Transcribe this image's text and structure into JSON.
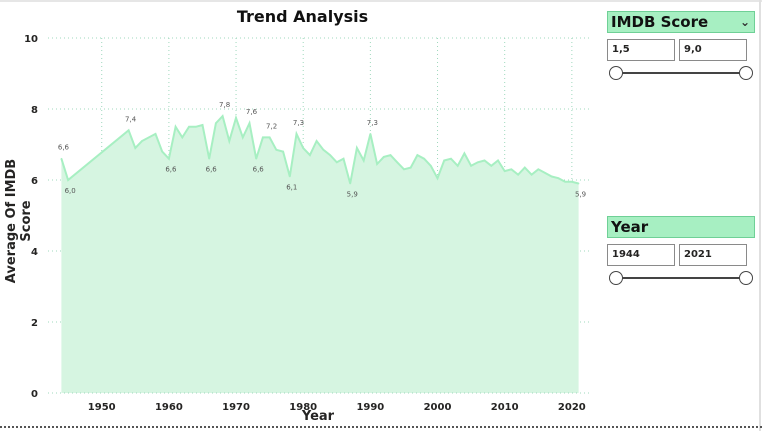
{
  "slicers": {
    "imdb": {
      "title": "IMDB Score",
      "min_value": "1,5",
      "max_value": "9,0",
      "dropdown_icon": "chevron-down-icon"
    },
    "year": {
      "title": "Year",
      "min_value": "1944",
      "max_value": "2021"
    }
  },
  "colors": {
    "area_fill": "#d6f5e1",
    "line": "#a7efc2",
    "grid": "#9fd8bd",
    "header_bg": "#a7efc2"
  },
  "chart_data": {
    "type": "area",
    "title": "Trend Analysis",
    "xlabel": "Year",
    "ylabel": "Average Of IMDB Score",
    "xlim": [
      1942,
      2023
    ],
    "ylim": [
      0,
      10
    ],
    "x_ticks": [
      1950,
      1960,
      1970,
      1980,
      1990,
      2000,
      2010,
      2020
    ],
    "y_ticks": [
      0,
      2,
      4,
      6,
      8,
      10
    ],
    "grid": true,
    "series": [
      {
        "x": [
          1944,
          1945,
          1954,
          1955,
          1956,
          1958,
          1959,
          1960,
          1961,
          1962,
          1963,
          1964,
          1965,
          1966,
          1967,
          1968,
          1969,
          1970,
          1971,
          1972,
          1973,
          1974,
          1975,
          1976,
          1977,
          1978,
          1979,
          1980,
          1981,
          1982,
          1983,
          1984,
          1985,
          1986,
          1987,
          1988,
          1989,
          1990,
          1991,
          1992,
          1993,
          1994,
          1995,
          1996,
          1997,
          1998,
          1999,
          2000,
          2001,
          2002,
          2003,
          2004,
          2005,
          2006,
          2007,
          2008,
          2009,
          2010,
          2011,
          2012,
          2013,
          2014,
          2015,
          2016,
          2017,
          2018,
          2019,
          2020,
          2021
        ],
        "values": [
          6.6,
          6.0,
          7.4,
          6.9,
          7.1,
          7.3,
          6.8,
          6.6,
          7.5,
          7.2,
          7.5,
          7.5,
          7.55,
          6.6,
          7.6,
          7.8,
          7.1,
          7.75,
          7.2,
          7.6,
          6.6,
          7.2,
          7.2,
          6.85,
          6.8,
          6.1,
          7.3,
          6.9,
          6.7,
          7.1,
          6.85,
          6.7,
          6.5,
          6.6,
          5.9,
          6.9,
          6.55,
          7.3,
          6.45,
          6.65,
          6.7,
          6.5,
          6.3,
          6.35,
          6.7,
          6.6,
          6.4,
          6.05,
          6.55,
          6.6,
          6.4,
          6.75,
          6.4,
          6.5,
          6.55,
          6.4,
          6.55,
          6.25,
          6.3,
          6.15,
          6.35,
          6.15,
          6.3,
          6.2,
          6.1,
          6.05,
          5.95,
          5.95,
          5.9
        ]
      }
    ],
    "data_labels": [
      {
        "x": 1944,
        "value": "6,6",
        "pos": "above"
      },
      {
        "x": 1945,
        "value": "6,0",
        "pos": "below"
      },
      {
        "x": 1954,
        "value": "7,4",
        "pos": "above"
      },
      {
        "x": 1960,
        "value": "6,6",
        "pos": "below"
      },
      {
        "x": 1966,
        "value": "6,6",
        "pos": "below"
      },
      {
        "x": 1968,
        "value": "7,8",
        "pos": "above"
      },
      {
        "x": 1972,
        "value": "7,6",
        "pos": "above"
      },
      {
        "x": 1973,
        "value": "6,6",
        "pos": "below"
      },
      {
        "x": 1975,
        "value": "7,2",
        "pos": "above"
      },
      {
        "x": 1978,
        "value": "6,1",
        "pos": "below"
      },
      {
        "x": 1979,
        "value": "7,3",
        "pos": "above"
      },
      {
        "x": 1987,
        "value": "5,9",
        "pos": "below"
      },
      {
        "x": 1990,
        "value": "7,3",
        "pos": "above"
      },
      {
        "x": 2021,
        "value": "5,9",
        "pos": "below"
      }
    ]
  }
}
